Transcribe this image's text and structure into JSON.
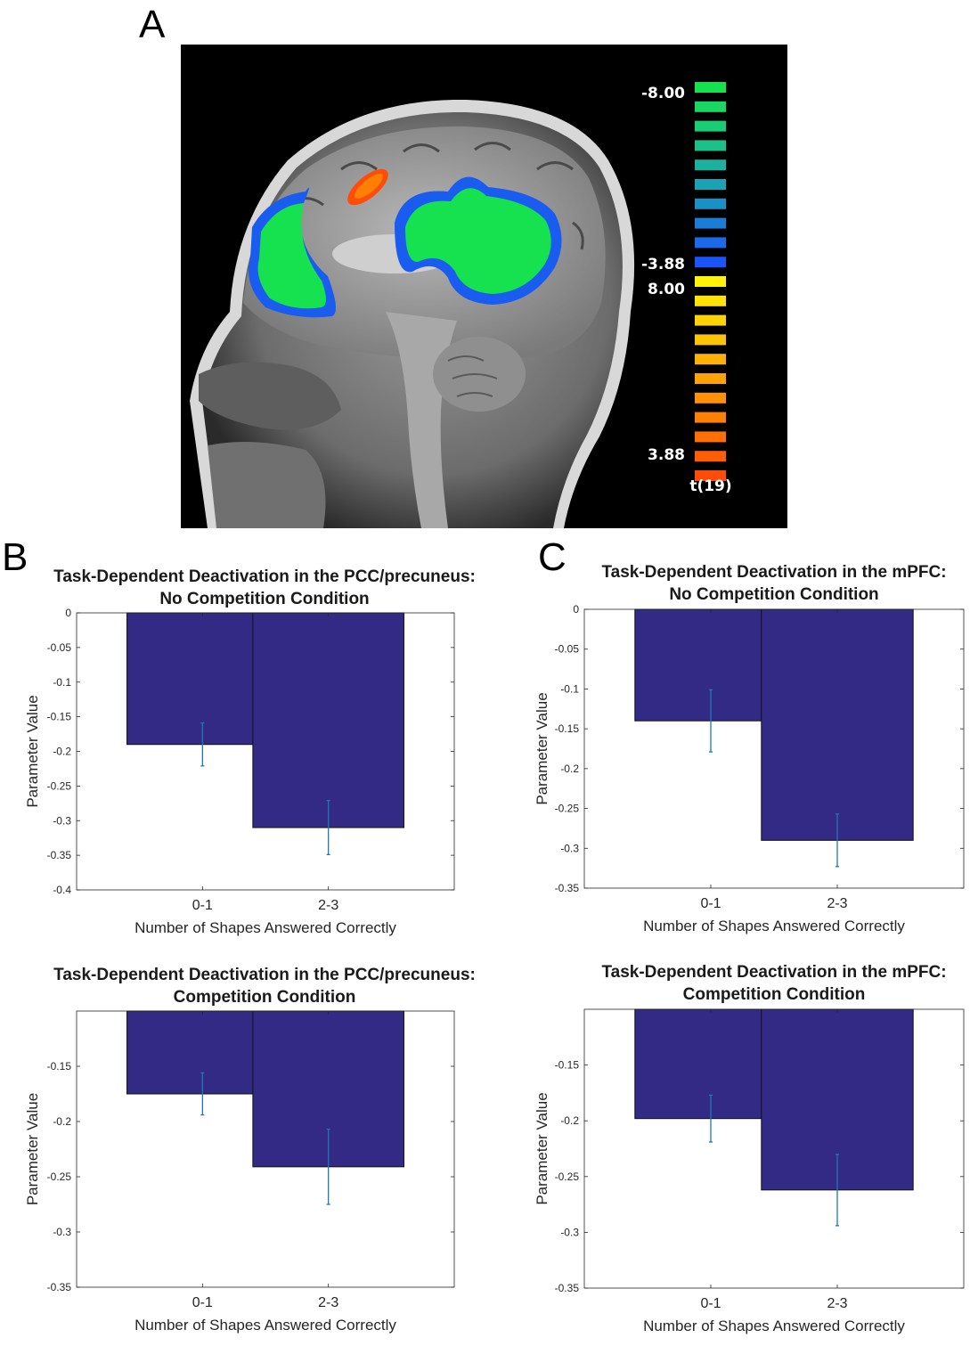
{
  "panel_letters": {
    "a": "A",
    "b": "B",
    "c": "C"
  },
  "brain_colorbar": {
    "labels": [
      "-8.00",
      "-3.88",
      "8.00",
      "3.88"
    ],
    "unit_label": "t(19)",
    "negative_colors": [
      "#16e24f",
      "#18d763",
      "#19cd76",
      "#1bc18b",
      "#1ab29f",
      "#1aa3b4",
      "#1a91c6",
      "#1a7ed9",
      "#1a6ae9",
      "#1955f8"
    ],
    "positive_colors": [
      "#fff20a",
      "#ffe208",
      "#ffd306",
      "#ffc305",
      "#ffb204",
      "#ffa204",
      "#ff9104",
      "#ff8005",
      "#ff6f06",
      "#ff5e07",
      "#ff4c08"
    ]
  },
  "chart_data": [
    {
      "type": "bar",
      "title": [
        "Task-Dependent Deactivation in the PCC/precuneus:",
        "No Competition Condition"
      ],
      "xlabel": "Number of Shapes Answered Correctly",
      "ylabel": "Parameter Value",
      "categories": [
        "0-1",
        "2-3"
      ],
      "values": [
        -0.19,
        -0.31
      ],
      "errors": [
        0.031,
        0.039
      ],
      "ylim": [
        -0.4,
        0
      ],
      "yticks": [
        0,
        -0.05,
        -0.1,
        -0.15,
        -0.2,
        -0.25,
        -0.3,
        -0.35,
        -0.4
      ],
      "ytick_labels": [
        "0",
        "-0.05",
        "-0.1",
        "-0.15",
        "-0.2",
        "-0.25",
        "-0.3",
        "-0.35",
        "-0.4"
      ],
      "bar_color": "#322a84",
      "error_color": "#1f77b4"
    },
    {
      "type": "bar",
      "title": [
        "Task-Dependent Deactivation in the mPFC:",
        "No Competition Condition"
      ],
      "xlabel": "Number of Shapes Answered Correctly",
      "ylabel": "Parameter Value",
      "categories": [
        "0-1",
        "2-3"
      ],
      "values": [
        -0.14,
        -0.29
      ],
      "errors": [
        0.039,
        0.033
      ],
      "ylim": [
        -0.35,
        0
      ],
      "yticks": [
        0,
        -0.05,
        -0.1,
        -0.15,
        -0.2,
        -0.25,
        -0.3,
        -0.35
      ],
      "ytick_labels": [
        "0",
        "-0.05",
        "-0.1",
        "-0.15",
        "-0.2",
        "-0.25",
        "-0.3",
        "-0.35"
      ],
      "bar_color": "#322a84",
      "error_color": "#1f77b4"
    },
    {
      "type": "bar",
      "title": [
        "Task-Dependent Deactivation in the PCC/precuneus:",
        "Competition Condition"
      ],
      "xlabel": "Number of Shapes Answered Correctly",
      "ylabel": "Parameter Value",
      "categories": [
        "0-1",
        "2-3"
      ],
      "values": [
        -0.175,
        -0.241
      ],
      "errors": [
        0.019,
        0.034
      ],
      "ylim": [
        -0.35,
        -0.1
      ],
      "yticks": [
        -0.15,
        -0.2,
        -0.25,
        -0.3,
        -0.35
      ],
      "ytick_labels": [
        "-0.15",
        "-0.2",
        "-0.25",
        "-0.3",
        "-0.35"
      ],
      "bar_color": "#322a84",
      "error_color": "#1f77b4"
    },
    {
      "type": "bar",
      "title": [
        "Task-Dependent Deactivation in the mPFC:",
        "Competition Condition"
      ],
      "xlabel": "Number of Shapes Answered Correctly",
      "ylabel": "Parameter Value",
      "categories": [
        "0-1",
        "2-3"
      ],
      "values": [
        -0.198,
        -0.262
      ],
      "errors": [
        0.021,
        0.032
      ],
      "ylim": [
        -0.35,
        -0.1
      ],
      "yticks": [
        -0.15,
        -0.2,
        -0.25,
        -0.3,
        -0.35
      ],
      "ytick_labels": [
        "-0.15",
        "-0.2",
        "-0.25",
        "-0.3",
        "-0.35"
      ],
      "bar_color": "#322a84",
      "error_color": "#1f77b4"
    }
  ]
}
